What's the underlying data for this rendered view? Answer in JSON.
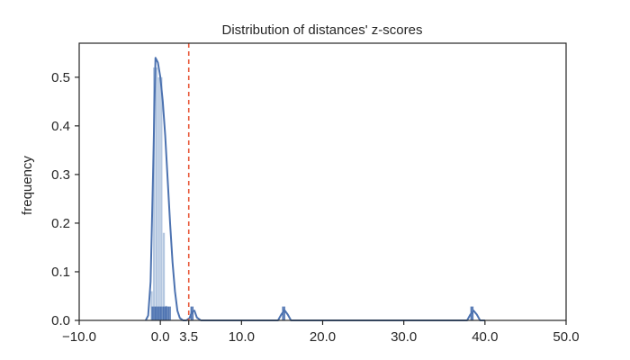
{
  "chart_data": {
    "type": "histogram-kde",
    "title": "Distribution of distances' z-scores",
    "xlabel": "",
    "ylabel": "frequency",
    "xlim": [
      -10,
      50
    ],
    "ylim": [
      0,
      0.57
    ],
    "x_ticks": [
      -10,
      0,
      3.5,
      10,
      20,
      30,
      40,
      50
    ],
    "x_tick_labels": [
      "−10.0",
      "0.0",
      "3.5",
      "10.0",
      "20.0",
      "30.0",
      "40.0",
      "50.0"
    ],
    "y_ticks": [
      0.0,
      0.1,
      0.2,
      0.3,
      0.4,
      0.5
    ],
    "y_tick_labels": [
      "0.0",
      "0.1",
      "0.2",
      "0.3",
      "0.4",
      "0.5"
    ],
    "histogram": {
      "color": "#b0c4de",
      "bin_edges": [
        -1.2,
        -0.9,
        -0.6,
        -0.3,
        0.0,
        0.3,
        0.6,
        0.9,
        1.2
      ],
      "values": [
        0.06,
        0.52,
        0.52,
        0.5,
        0.5,
        0.18,
        0.03,
        0.0
      ]
    },
    "kde": {
      "color": "#4c72b0",
      "x": [
        -1.8,
        -1.5,
        -1.2,
        -0.9,
        -0.6,
        -0.3,
        0.0,
        0.3,
        0.6,
        0.9,
        1.2,
        1.5,
        1.8,
        2.1,
        2.4,
        2.8,
        3.2,
        3.6,
        3.9,
        4.2,
        4.5,
        5.0,
        8.0,
        12.0,
        14.5,
        14.9,
        15.3,
        15.7,
        16.1,
        17.0,
        25.0,
        35.0,
        37.8,
        38.2,
        38.6,
        39.0,
        39.4,
        40.0
      ],
      "y": [
        0.0,
        0.01,
        0.08,
        0.3,
        0.54,
        0.53,
        0.5,
        0.45,
        0.38,
        0.29,
        0.2,
        0.12,
        0.06,
        0.02,
        0.005,
        0.0,
        0.0,
        0.005,
        0.018,
        0.02,
        0.006,
        0.0,
        0.0,
        0.0,
        0.0,
        0.012,
        0.021,
        0.012,
        0.0,
        0.0,
        0.0,
        0.0,
        0.0,
        0.012,
        0.02,
        0.012,
        0.0,
        0.0
      ]
    },
    "rug": {
      "color": "#4c72b0",
      "height_fraction": 0.05,
      "x": [
        -1.0,
        -0.8,
        -0.6,
        -0.4,
        -0.2,
        0.0,
        0.2,
        0.4,
        0.6,
        0.8,
        1.0,
        1.2,
        3.8,
        4.0,
        15.1,
        15.3,
        38.3,
        38.5
      ]
    },
    "threshold": {
      "x": 3.5,
      "color": "#e8593a",
      "style": "dashed"
    },
    "grid": false
  }
}
